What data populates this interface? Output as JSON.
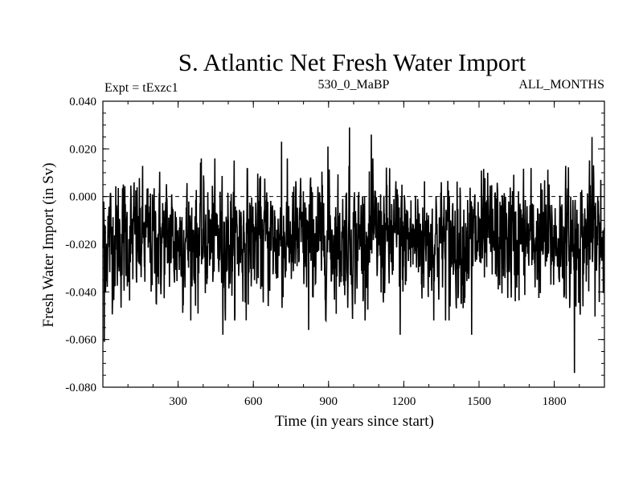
{
  "chart_data": {
    "type": "line",
    "title": "S. Atlantic Net Fresh Water Import",
    "subtitle_left": "Expt = tExzc1",
    "subtitle_center": "530_0_MaBP",
    "subtitle_right": "ALL_MONTHS",
    "xlabel": "Time (in years since start)",
    "ylabel": "Fresh Water Import (in Sv)",
    "xlim": [
      0,
      2000
    ],
    "ylim": [
      -0.08,
      0.04
    ],
    "xticks": [
      300,
      600,
      900,
      1200,
      1500,
      1800
    ],
    "xtick_labels": [
      "300",
      "600",
      "900",
      "1200",
      "1500",
      "1800"
    ],
    "yticks": [
      -0.08,
      -0.06,
      -0.04,
      -0.02,
      0.0,
      0.02,
      0.04
    ],
    "ytick_labels": [
      "-0.080",
      "-0.060",
      "-0.040",
      "-0.020",
      "0.000",
      "0.020",
      "0.040"
    ],
    "reference_line": 0.0,
    "series": [
      {
        "name": "Net Fresh Water Import",
        "mean": -0.018,
        "std": 0.0125,
        "n_points": 2000,
        "extremes": [
          {
            "x": 5,
            "y": -0.061
          },
          {
            "x": 478,
            "y": -0.058
          },
          {
            "x": 712,
            "y": 0.023
          },
          {
            "x": 820,
            "y": -0.056
          },
          {
            "x": 897,
            "y": 0.021
          },
          {
            "x": 983,
            "y": 0.029
          },
          {
            "x": 1070,
            "y": 0.026
          },
          {
            "x": 1185,
            "y": -0.058
          },
          {
            "x": 1380,
            "y": -0.052
          },
          {
            "x": 1470,
            "y": -0.058
          },
          {
            "x": 1880,
            "y": -0.074
          },
          {
            "x": 1950,
            "y": 0.025
          },
          {
            "x": 1985,
            "y": 0.007
          }
        ]
      }
    ]
  }
}
